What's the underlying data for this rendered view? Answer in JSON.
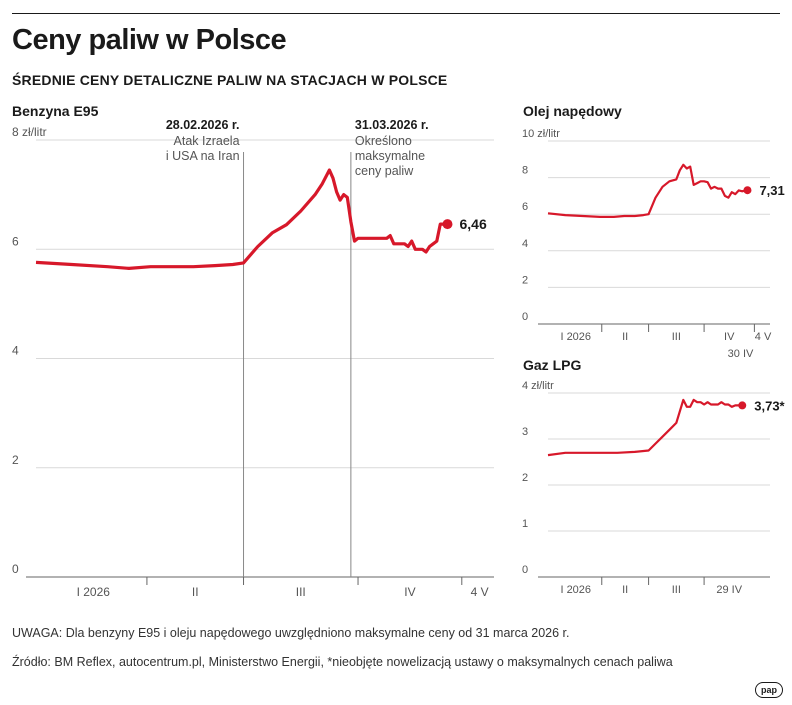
{
  "header": {
    "title": "Ceny paliw w Polsce",
    "subtitle": "ŚREDNIE CENY DETALICZNE PALIW NA STACJACH W POLSCE"
  },
  "notes": {
    "uwaga": "UWAGA: Dla benzyny E95 i oleju napędowego uwzględniono maksymalne ceny od 31 marca 2026 r.",
    "source": "Źródło: BM Reflex, autocentrum.pl, Ministerstwo Energii, *nieobjęte nowelizacją ustawy o maksymalnych cenach paliwa"
  },
  "logo": "pap",
  "colors": {
    "series": "#d7182a",
    "axis": "#555555",
    "grid": "#d9d9d9",
    "text": "#1a1a1a"
  },
  "chart_data": [
    {
      "id": "e95",
      "type": "line",
      "title": "Benzyna E95",
      "ylabel": "8 zł/litr",
      "ylim": [
        0,
        8
      ],
      "yticks": [
        0,
        2,
        4,
        6
      ],
      "xlim": [
        0,
        128
      ],
      "x_labels": [
        {
          "pos": 16,
          "label": "I 2026"
        },
        {
          "pos": 44.5,
          "label": "II"
        },
        {
          "pos": 74,
          "label": "III"
        },
        {
          "pos": 104.5,
          "label": "IV"
        },
        {
          "pos": 124,
          "label": "4 V"
        }
      ],
      "x_separators": [
        31,
        58,
        90,
        119
      ],
      "x": [
        0,
        10,
        20,
        26,
        32,
        38,
        44,
        50,
        55,
        58,
        62,
        66,
        70,
        74,
        78,
        80,
        82,
        83,
        84,
        85,
        86,
        87,
        88,
        89,
        90,
        91,
        92,
        93,
        94,
        95,
        96,
        97,
        98,
        99,
        100,
        101,
        102,
        103,
        104,
        105,
        106,
        107,
        108,
        109,
        110,
        111,
        112,
        113,
        114,
        115
      ],
      "values": [
        5.76,
        5.72,
        5.68,
        5.65,
        5.68,
        5.68,
        5.68,
        5.7,
        5.72,
        5.75,
        6.05,
        6.3,
        6.45,
        6.7,
        7.0,
        7.2,
        7.45,
        7.3,
        7.05,
        6.9,
        7.0,
        6.95,
        6.5,
        6.15,
        6.2,
        6.2,
        6.2,
        6.2,
        6.2,
        6.2,
        6.2,
        6.2,
        6.2,
        6.25,
        6.1,
        6.1,
        6.1,
        6.1,
        6.05,
        6.15,
        6.0,
        6.0,
        6.0,
        5.95,
        6.05,
        6.1,
        6.15,
        6.46,
        6.46,
        6.46
      ],
      "last_value": "6,46",
      "annotations": [
        {
          "x": 58,
          "date": "28.02.2026 r.",
          "lines": [
            "Atak Izraela",
            "i USA na Iran"
          ]
        },
        {
          "x": 88,
          "date": "31.03.2026 r.",
          "lines": [
            "Określono",
            "maksymalne",
            "ceny paliw"
          ]
        }
      ]
    },
    {
      "id": "on",
      "type": "line",
      "title": "Olej napędowy",
      "ylabel": "10 zł/litr",
      "ylim": [
        0,
        10
      ],
      "yticks": [
        0,
        2,
        4,
        6,
        8
      ],
      "xlim": [
        0,
        128
      ],
      "x_labels": [
        {
          "pos": 16,
          "label": "I 2026"
        },
        {
          "pos": 44.5,
          "label": "II"
        },
        {
          "pos": 74,
          "label": "III"
        },
        {
          "pos": 104.5,
          "label": "IV"
        },
        {
          "pos": 124,
          "label": "4 V"
        }
      ],
      "x_separators": [
        31,
        58,
        90,
        119
      ],
      "extra_label": {
        "pos": 111,
        "label": "30 IV"
      },
      "x": [
        0,
        10,
        20,
        30,
        38,
        44,
        50,
        55,
        58,
        62,
        66,
        70,
        74,
        76,
        78,
        80,
        82,
        84,
        86,
        88,
        90,
        92,
        94,
        96,
        98,
        100,
        102,
        104,
        106,
        108,
        110,
        112,
        114,
        115
      ],
      "values": [
        6.05,
        5.95,
        5.9,
        5.85,
        5.85,
        5.9,
        5.9,
        5.95,
        6.0,
        6.9,
        7.5,
        7.8,
        7.9,
        8.4,
        8.7,
        8.5,
        8.6,
        7.6,
        7.7,
        7.8,
        7.8,
        7.75,
        7.4,
        7.5,
        7.4,
        7.4,
        7.0,
        6.9,
        7.2,
        7.1,
        7.3,
        7.25,
        7.31,
        7.31
      ],
      "last_value": "7,31"
    },
    {
      "id": "lpg",
      "type": "line",
      "title": "Gaz LPG",
      "ylabel": "4 zł/litr",
      "ylim": [
        0,
        4
      ],
      "yticks": [
        0,
        1,
        2,
        3
      ],
      "xlim": [
        0,
        128
      ],
      "x_labels": [
        {
          "pos": 16,
          "label": "I 2026"
        },
        {
          "pos": 44.5,
          "label": "II"
        },
        {
          "pos": 74,
          "label": "III"
        },
        {
          "pos": 104.5,
          "label": "29 IV"
        }
      ],
      "x_separators": [
        31,
        58,
        90
      ],
      "x": [
        0,
        10,
        20,
        30,
        40,
        50,
        58,
        62,
        66,
        70,
        74,
        78,
        80,
        82,
        84,
        86,
        88,
        90,
        92,
        94,
        96,
        98,
        100,
        102,
        104,
        106,
        108,
        110,
        112
      ],
      "values": [
        2.65,
        2.7,
        2.7,
        2.7,
        2.7,
        2.72,
        2.75,
        2.9,
        3.05,
        3.2,
        3.35,
        3.85,
        3.7,
        3.7,
        3.85,
        3.8,
        3.8,
        3.75,
        3.8,
        3.75,
        3.75,
        3.75,
        3.8,
        3.75,
        3.75,
        3.7,
        3.73,
        3.73,
        3.73
      ],
      "last_value": "3,73*"
    }
  ]
}
